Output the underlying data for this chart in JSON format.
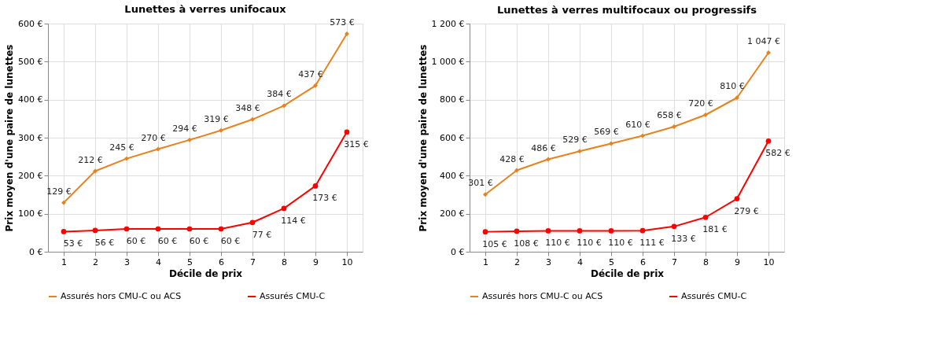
{
  "chart_data": [
    {
      "type": "line",
      "title": "Lunettes à verres unifocaux",
      "xlabel": "Décile de prix",
      "ylabel": "Prix moyen d'une paire de lunettes",
      "categories": [
        "1",
        "2",
        "3",
        "4",
        "5",
        "6",
        "7",
        "8",
        "9",
        "10"
      ],
      "series": [
        {
          "name": "Assurés hors CMU-C ou ACS",
          "color": "#e8821e",
          "marker": "diamond",
          "values": [
            129,
            212,
            245,
            270,
            294,
            319,
            348,
            384,
            437,
            573
          ],
          "value_labels": [
            "129 €",
            "212 €",
            "245 €",
            "270 €",
            "294 €",
            "319 €",
            "348 €",
            "384 €",
            "437 €",
            "573 €"
          ]
        },
        {
          "name": "Assurés CMU-C",
          "color": "#ff0000",
          "marker": "circle",
          "values": [
            53,
            56,
            60,
            60,
            60,
            60,
            77,
            114,
            173,
            315
          ],
          "value_labels": [
            "53 €",
            "56 €",
            "60 €",
            "60 €",
            "60 €",
            "60 €",
            "77 €",
            "114 €",
            "173 €",
            "315 €"
          ]
        }
      ],
      "ylim": [
        0,
        600
      ],
      "yticks": [
        {
          "value": 0,
          "label": "0 €"
        },
        {
          "value": 100,
          "label": "100 €"
        },
        {
          "value": 200,
          "label": "200 €"
        },
        {
          "value": 300,
          "label": "300 €"
        },
        {
          "value": 400,
          "label": "400 €"
        },
        {
          "value": 500,
          "label": "500 €"
        },
        {
          "value": 600,
          "label": "600 €"
        }
      ],
      "grid": true,
      "legend": "bottom"
    },
    {
      "type": "line",
      "title": "Lunettes à verres multifocaux ou progressifs",
      "xlabel": "Décile de prix",
      "ylabel": "Prix moyen d'une paire de lunettes",
      "categories": [
        "1",
        "2",
        "3",
        "4",
        "5",
        "6",
        "7",
        "8",
        "9",
        "10"
      ],
      "series": [
        {
          "name": "Assurés hors CMU-C ou ACS",
          "color": "#e8821e",
          "marker": "diamond",
          "values": [
            301,
            428,
            486,
            529,
            569,
            610,
            658,
            720,
            810,
            1047
          ],
          "value_labels": [
            "301 €",
            "428 €",
            "486 €",
            "529 €",
            "569 €",
            "610 €",
            "658 €",
            "720 €",
            "810 €",
            "1 047 €"
          ]
        },
        {
          "name": "Assurés CMU-C",
          "color": "#ff0000",
          "marker": "circle",
          "values": [
            105,
            108,
            110,
            110,
            110,
            111,
            133,
            181,
            279,
            582
          ],
          "value_labels": [
            "105 €",
            "108 €",
            "110 €",
            "110 €",
            "110 €",
            "111 €",
            "133 €",
            "181 €",
            "279 €",
            "582 €"
          ]
        }
      ],
      "ylim": [
        0,
        1200
      ],
      "yticks": [
        {
          "value": 0,
          "label": "0 €"
        },
        {
          "value": 200,
          "label": "200 €"
        },
        {
          "value": 400,
          "label": "400 €"
        },
        {
          "value": 600,
          "label": "600 €"
        },
        {
          "value": 800,
          "label": "800 €"
        },
        {
          "value": 1000,
          "label": "1 000 €"
        },
        {
          "value": 1200,
          "label": "1 200 €"
        }
      ],
      "grid": true,
      "legend": "bottom"
    }
  ]
}
